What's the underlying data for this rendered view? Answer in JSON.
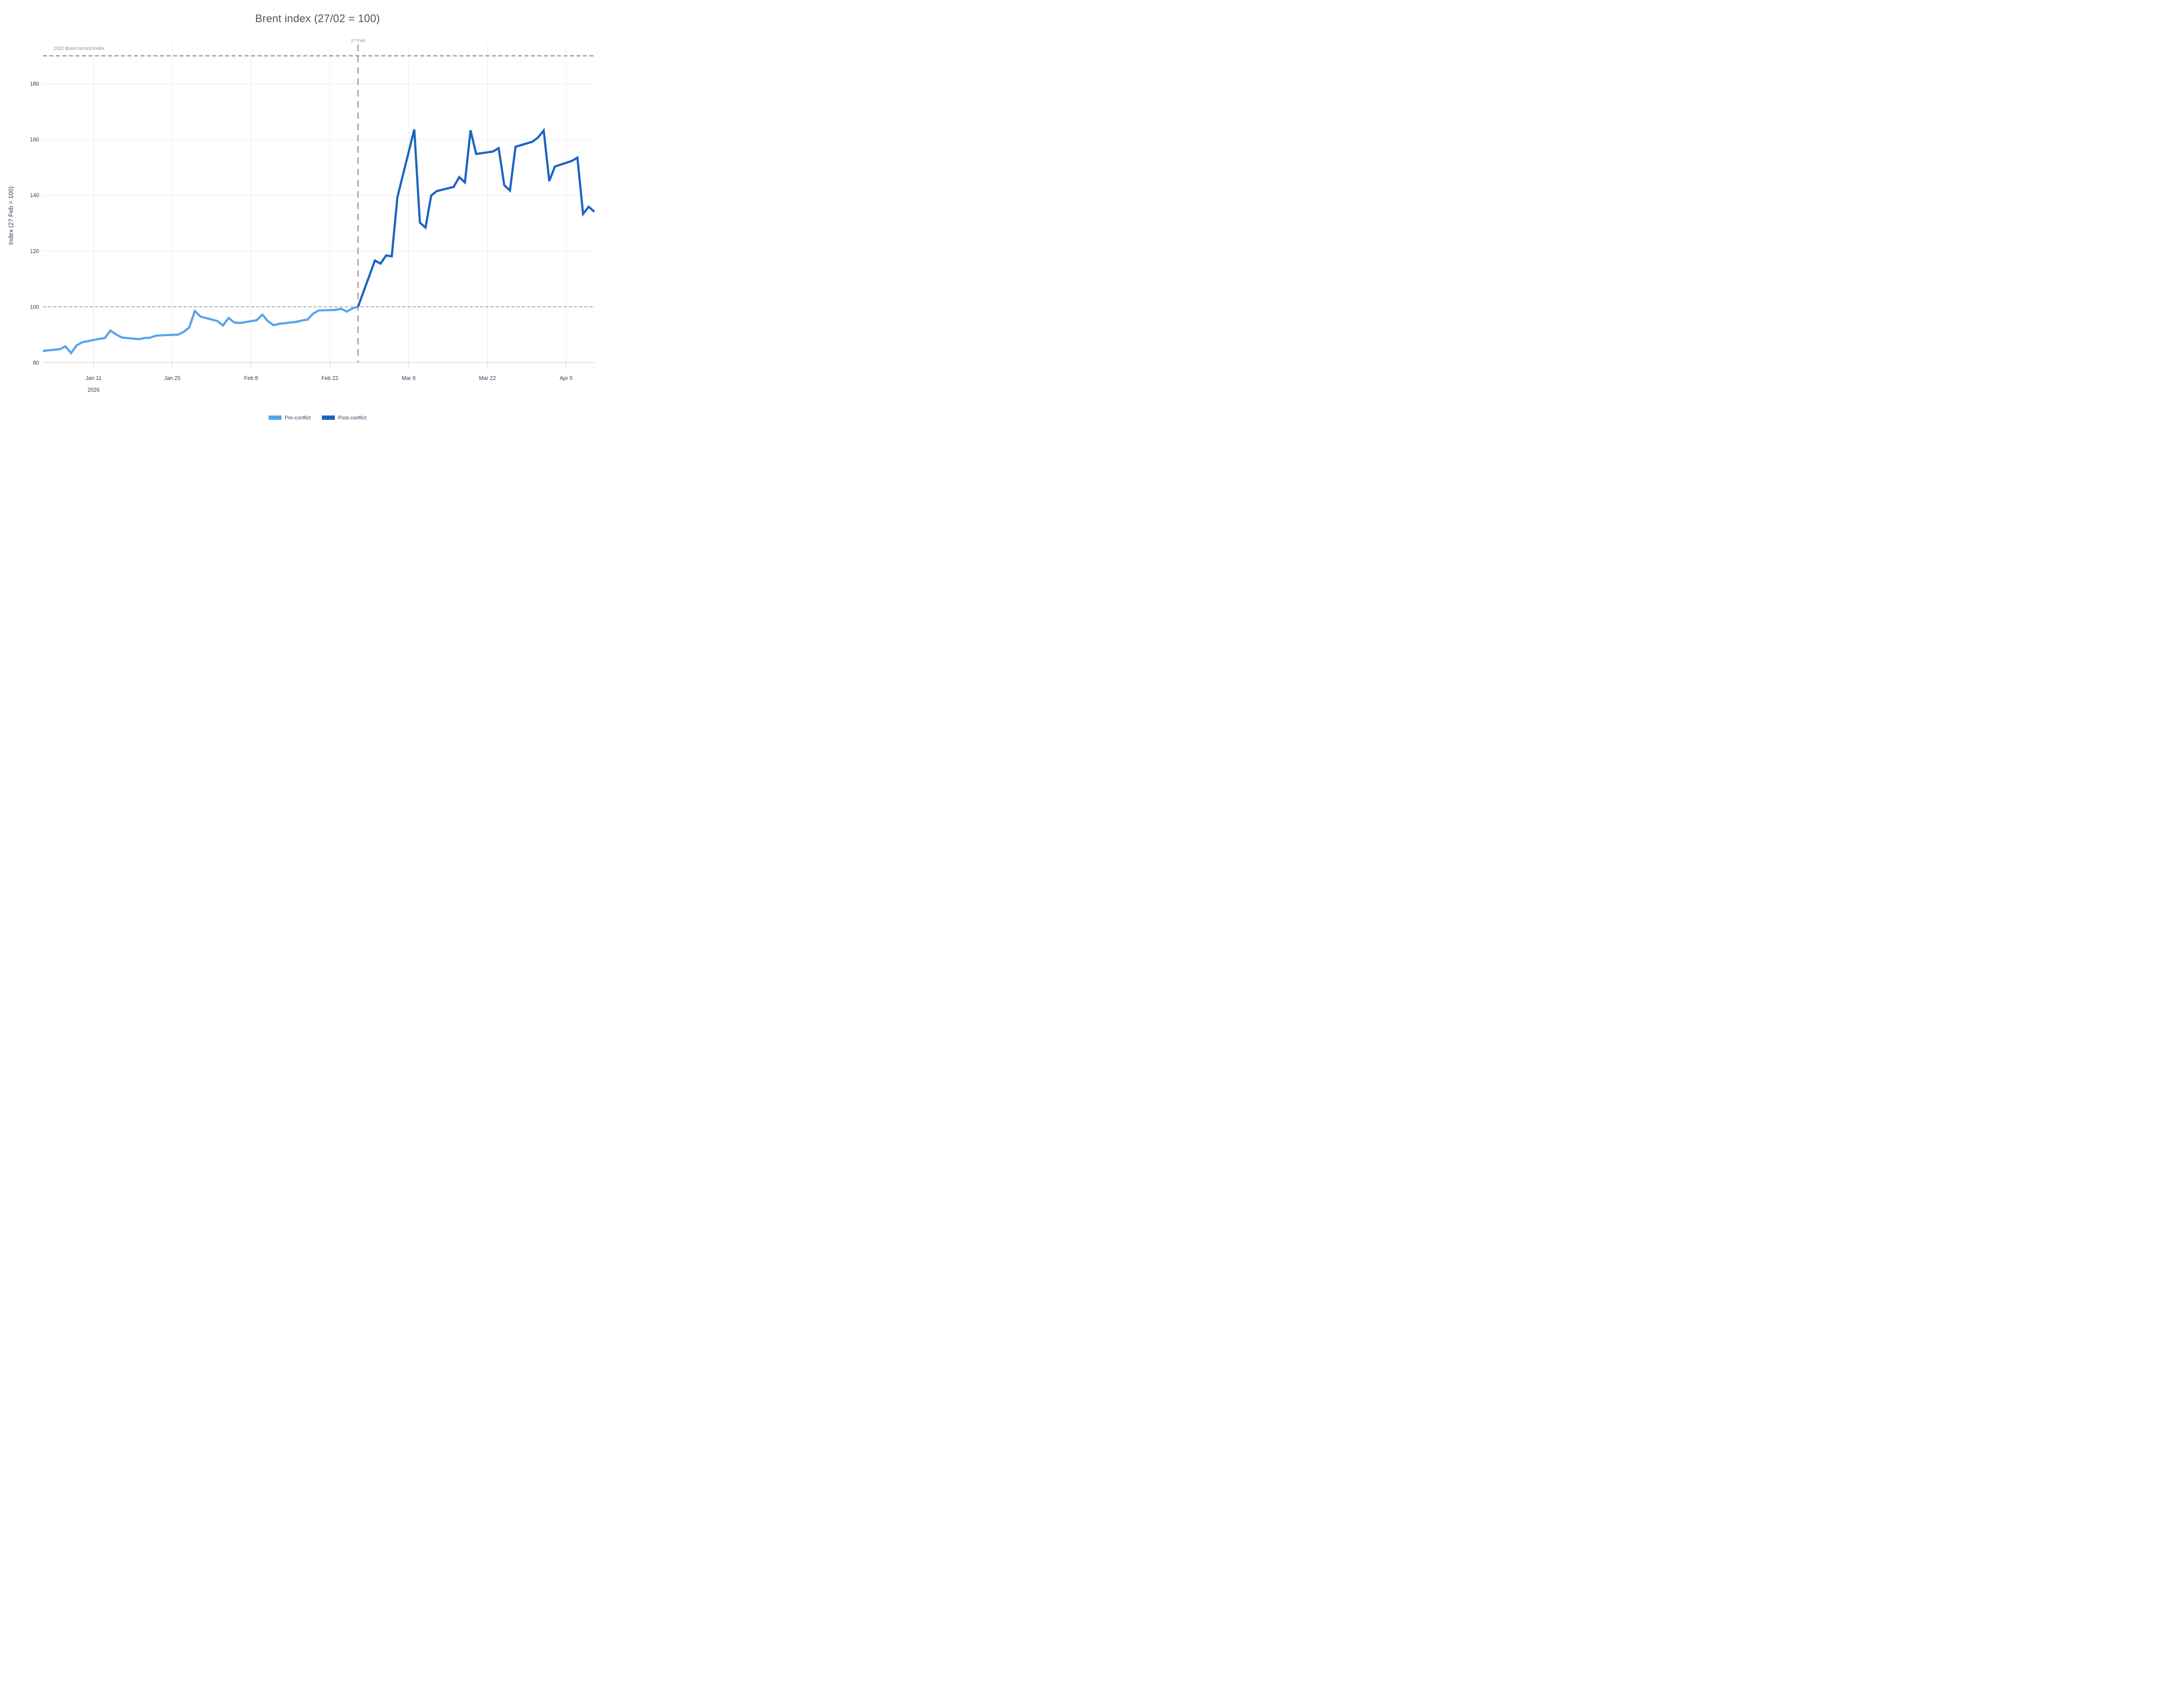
{
  "title": "Brent index (27/02 = 100)",
  "colors": {
    "pre_conflict": "#58A4EC",
    "post_conflict": "#1B64C2",
    "grid": "#E4E4E4",
    "axis_line": "#D4D4D4",
    "tick_text": "#2a3f5f",
    "title_text": "#555555",
    "reference_line": "#909090",
    "baseline_line": "#A6A6A6",
    "annotation_text": "#8c8c8c",
    "background": "#ffffff"
  },
  "y_axis": {
    "title": "Index (27 Feb = 100)",
    "range": [
      80,
      194
    ],
    "ticks": [
      {
        "value": 80,
        "label": "80"
      },
      {
        "value": 100,
        "label": "100"
      },
      {
        "value": 120,
        "label": "120"
      },
      {
        "value": 140,
        "label": "140"
      },
      {
        "value": 160,
        "label": "160"
      },
      {
        "value": 180,
        "label": "180"
      }
    ]
  },
  "x_axis": {
    "range": [
      "2026-01-02",
      "2026-04-10"
    ],
    "ticks": [
      {
        "date": "2026-01-11",
        "label": "Jan 11",
        "year": "2026"
      },
      {
        "date": "2026-01-25",
        "label": "Jan 25",
        "year": ""
      },
      {
        "date": "2026-02-08",
        "label": "Feb 8",
        "year": ""
      },
      {
        "date": "2026-02-22",
        "label": "Feb 22",
        "year": ""
      },
      {
        "date": "2026-03-08",
        "label": "Mar 8",
        "year": ""
      },
      {
        "date": "2026-03-22",
        "label": "Mar 22",
        "year": ""
      },
      {
        "date": "2026-04-05",
        "label": "Apr 5",
        "year": ""
      }
    ]
  },
  "reference_lines": {
    "record": {
      "value": 190,
      "label": "2022 Brent record index",
      "style": "dashed"
    },
    "baseline": {
      "value": 100,
      "label": "",
      "style": "dashed"
    },
    "event": {
      "date": "2026-02-27",
      "label": "27 Feb",
      "style": "dashed"
    }
  },
  "chart_data": {
    "type": "line",
    "title": "Brent index (27/02 = 100)",
    "xlabel": "",
    "ylabel": "Index (27 Feb = 100)",
    "ylim": [
      80,
      194
    ],
    "xlim": [
      "2026-01-02",
      "2026-04-10"
    ],
    "grid": true,
    "legend_position": "bottom",
    "series": [
      {
        "name": "Pre-conflict",
        "color": "#58A4EC",
        "points": [
          [
            "2026-01-02",
            84.2
          ],
          [
            "2026-01-05",
            84.8
          ],
          [
            "2026-01-06",
            85.8
          ],
          [
            "2026-01-07",
            83.4
          ],
          [
            "2026-01-08",
            86.2
          ],
          [
            "2026-01-09",
            87.3
          ],
          [
            "2026-01-12",
            88.5
          ],
          [
            "2026-01-13",
            88.8
          ],
          [
            "2026-01-14",
            91.5
          ],
          [
            "2026-01-15",
            90.1
          ],
          [
            "2026-01-16",
            89.0
          ],
          [
            "2026-01-19",
            88.4
          ],
          [
            "2026-01-20",
            88.8
          ],
          [
            "2026-01-21",
            88.9
          ],
          [
            "2026-01-22",
            89.6
          ],
          [
            "2026-01-23",
            89.8
          ],
          [
            "2026-01-26",
            90.0
          ],
          [
            "2026-01-27",
            91.0
          ],
          [
            "2026-01-28",
            92.6
          ],
          [
            "2026-01-29",
            98.5
          ],
          [
            "2026-01-30",
            96.5
          ],
          [
            "2026-02-02",
            94.9
          ],
          [
            "2026-02-03",
            93.3
          ],
          [
            "2026-02-04",
            96.0
          ],
          [
            "2026-02-05",
            94.4
          ],
          [
            "2026-02-06",
            94.2
          ],
          [
            "2026-02-09",
            95.2
          ],
          [
            "2026-02-10",
            97.2
          ],
          [
            "2026-02-11",
            94.8
          ],
          [
            "2026-02-12",
            93.4
          ],
          [
            "2026-02-13",
            93.9
          ],
          [
            "2026-02-16",
            94.6
          ],
          [
            "2026-02-17",
            95.1
          ],
          [
            "2026-02-18",
            95.4
          ],
          [
            "2026-02-19",
            97.5
          ],
          [
            "2026-02-20",
            98.7
          ],
          [
            "2026-02-23",
            98.9
          ],
          [
            "2026-02-24",
            99.3
          ],
          [
            "2026-02-25",
            98.3
          ],
          [
            "2026-02-26",
            99.4
          ],
          [
            "2026-02-27",
            100.0
          ]
        ]
      },
      {
        "name": "Post-conflict",
        "color": "#1B64C2",
        "points": [
          [
            "2026-02-27",
            100.0
          ],
          [
            "2026-03-02",
            116.6
          ],
          [
            "2026-03-03",
            115.5
          ],
          [
            "2026-03-04",
            118.4
          ],
          [
            "2026-03-05",
            118.1
          ],
          [
            "2026-03-06",
            139.3
          ],
          [
            "2026-03-09",
            163.6
          ],
          [
            "2026-03-10",
            130.2
          ],
          [
            "2026-03-11",
            128.4
          ],
          [
            "2026-03-12",
            139.9
          ],
          [
            "2026-03-13",
            141.5
          ],
          [
            "2026-03-16",
            143.0
          ],
          [
            "2026-03-17",
            146.5
          ],
          [
            "2026-03-18",
            144.6
          ],
          [
            "2026-03-19",
            163.3
          ],
          [
            "2026-03-20",
            154.8
          ],
          [
            "2026-03-23",
            155.7
          ],
          [
            "2026-03-24",
            156.9
          ],
          [
            "2026-03-25",
            143.6
          ],
          [
            "2026-03-26",
            141.7
          ],
          [
            "2026-03-27",
            157.4
          ],
          [
            "2026-03-30",
            159.2
          ],
          [
            "2026-03-31",
            160.7
          ],
          [
            "2026-04-01",
            163.2
          ],
          [
            "2026-04-02",
            145.1
          ],
          [
            "2026-04-03",
            150.3
          ],
          [
            "2026-04-06",
            152.3
          ],
          [
            "2026-04-07",
            153.5
          ],
          [
            "2026-04-08",
            133.3
          ],
          [
            "2026-04-09",
            135.9
          ],
          [
            "2026-04-10",
            134.1
          ]
        ]
      }
    ]
  }
}
